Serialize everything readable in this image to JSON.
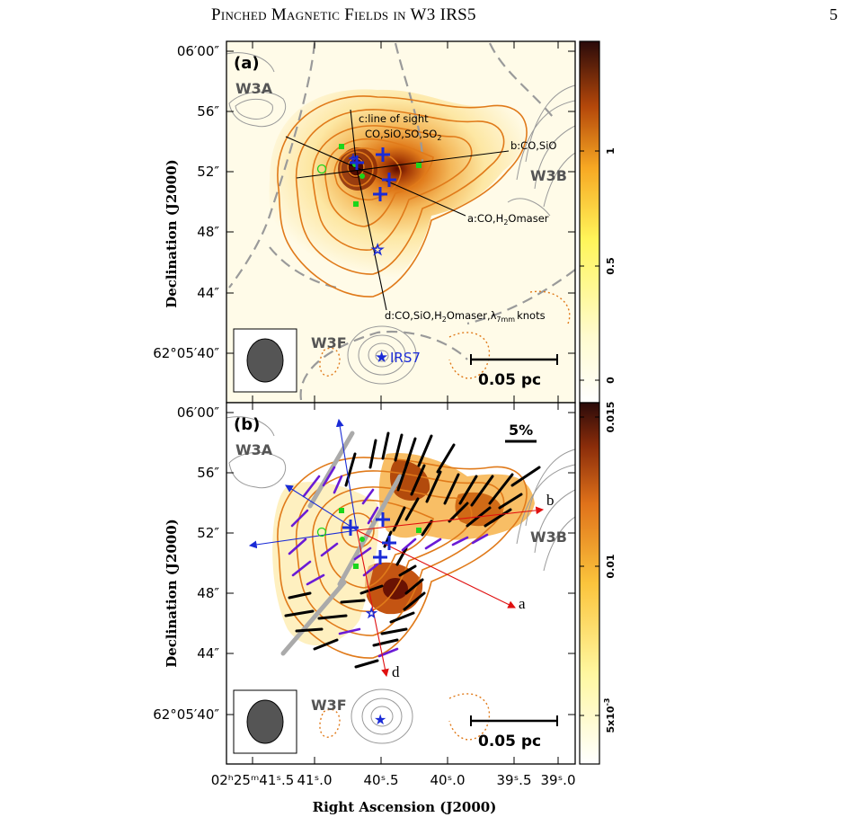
{
  "header": {
    "running_title": "Pinched Magnetic Fields in W3 IRS5",
    "page_number": "5"
  },
  "panel_a": {
    "label": "(a)",
    "regions": {
      "w3a": "W3A",
      "w3b": "W3B",
      "w3f": "W3F"
    },
    "irs7_label": "IRS7",
    "scale_bar": "0.05 pc",
    "outflow_labels": {
      "c1": "c:line of sight",
      "c2": "CO,SiO,SO,SO",
      "c2_sub": "2",
      "b": "b:CO,SiO",
      "a1": "a:CO,H",
      "a_sub": "2",
      "a2": "Omaser",
      "d1": "d:CO,SiO,H",
      "d_sub1": "2",
      "d2": "Omaser,λ",
      "d_sub2": "7mm",
      "d3": "knots"
    },
    "colorbar_ticks": [
      "1",
      "0.5",
      "0"
    ]
  },
  "panel_b": {
    "label": "(b)",
    "regions": {
      "w3a": "W3A",
      "w3b": "W3B",
      "w3f": "W3F"
    },
    "pol_scale": "5%",
    "scale_bar": "0.05 pc",
    "arrow_labels": {
      "a": "a",
      "b": "b",
      "d": "d"
    },
    "colorbar_ticks": [
      "0.015",
      "0.01"
    ],
    "colorbar_exp_tick": "5x10",
    "colorbar_exp_sup": "-3"
  },
  "axes": {
    "y_ticks_a": [
      "06′00″",
      "56″",
      "52″",
      "48″",
      "44″",
      "62°05′40″"
    ],
    "y_ticks_b": [
      "06′00″",
      "56″",
      "52″",
      "48″",
      "44″",
      "62°05′40″"
    ],
    "x_ticks": [
      "02ʰ25ᵐ41ˢ.5",
      "41ˢ.0",
      "40ˢ.5",
      "40ˢ.0",
      "39ˢ.5",
      "39ˢ.0"
    ],
    "ylabel": "Declination (J2000)",
    "xlabel": "Right Ascension (J2000)"
  },
  "colors": {
    "contour_orange": "#e07a1a",
    "contour_gray": "#9a9a9a",
    "marker_blue": "#1a2bd6",
    "marker_green": "#1bd61b",
    "arrow_red": "#e01010",
    "vector_purple": "#6a1bd6"
  }
}
